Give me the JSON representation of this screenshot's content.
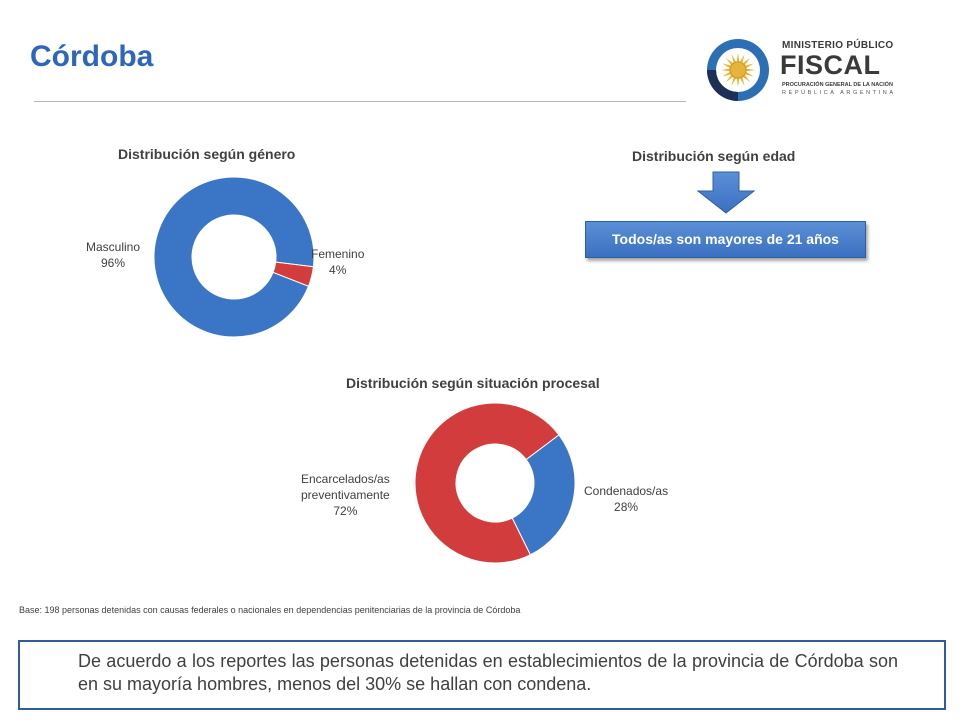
{
  "page": {
    "title": "Córdoba"
  },
  "logo": {
    "line1": "MINISTERIO PÚBLICO",
    "line2": "FISCAL",
    "line3": "PROCURACIÓN GENERAL DE LA NACIÓN",
    "line4": "REPÚBLICA ARGENTINA",
    "colors": {
      "ring": "#2c6fb5",
      "sun": "#e6b43a",
      "text": "#3a3a3a"
    }
  },
  "age": {
    "title": "Distribución según edad",
    "box_text": "Todos/as son mayores de 21 años",
    "icon": "down-arrow-icon"
  },
  "chart_data": [
    {
      "id": "genero",
      "type": "pie",
      "style": "donut",
      "title": "Distribución según género",
      "slices": [
        {
          "label": "Masculino",
          "value": 96,
          "percent_label": "96%",
          "color": "#3b76c6"
        },
        {
          "label": "Femenino",
          "value": 4,
          "percent_label": "4%",
          "color": "#d23c3c"
        }
      ]
    },
    {
      "id": "situacion",
      "type": "pie",
      "style": "donut",
      "title": "Distribución según situación procesal",
      "slices": [
        {
          "label": "Condenados/as",
          "value": 28,
          "percent_label": "28%",
          "color": "#3b76c6"
        },
        {
          "label": "Encarcelados/as preventivamente",
          "label_lines": [
            "Encarcelados/as",
            "preventivamente"
          ],
          "value": 72,
          "percent_label": "72%",
          "color": "#d23c3c"
        }
      ]
    }
  ],
  "footnote": "Base: 198 personas detenidas con causas federales o nacionales en dependencias penitenciarias de la provincia de Córdoba",
  "summary": "De acuerdo a los reportes las personas detenidas en establecimientos de la provincia de Córdoba son en su mayoría hombres, menos del 30% se hallan con condena."
}
